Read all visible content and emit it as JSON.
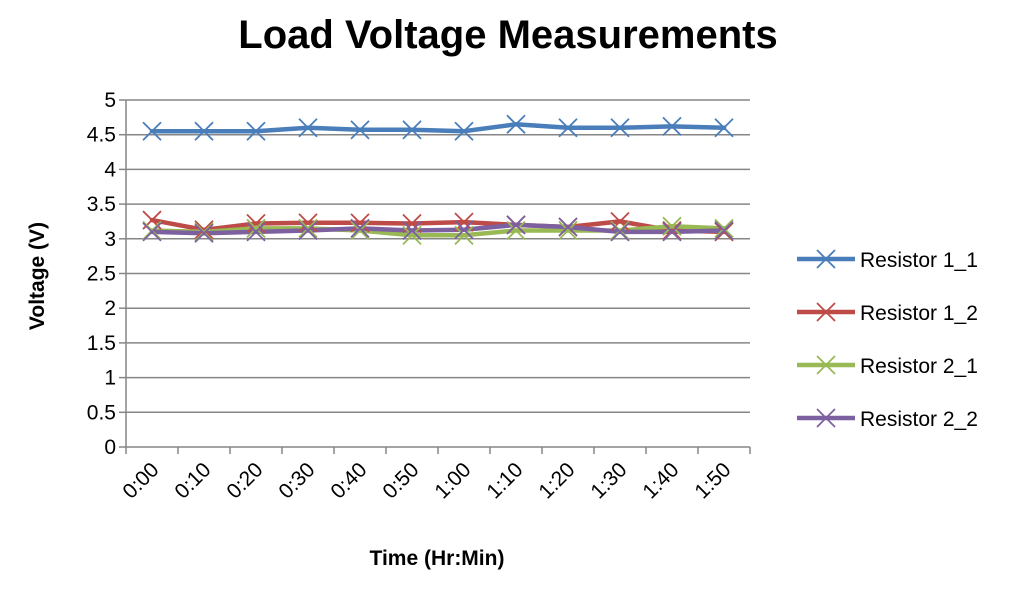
{
  "chart_data": {
    "type": "line",
    "title": "Load Voltage Measurements",
    "xlabel": "Time (Hr:Min)",
    "ylabel": "Voltage (V)",
    "categories": [
      "0:00",
      "0:10",
      "0:20",
      "0:30",
      "0:40",
      "0:50",
      "1:00",
      "1:10",
      "1:20",
      "1:30",
      "1:40",
      "1:50"
    ],
    "y_ticks": [
      "0",
      "0.5",
      "1",
      "1.5",
      "2",
      "2.5",
      "3",
      "3.5",
      "4",
      "4.5",
      "5"
    ],
    "ylim": [
      0,
      5
    ],
    "grid": "horizontal",
    "legend_position": "right",
    "series": [
      {
        "name": "Resistor 1_1",
        "color": "#4a7ebb",
        "values": [
          4.55,
          4.55,
          4.55,
          4.6,
          4.57,
          4.57,
          4.55,
          4.65,
          4.6,
          4.6,
          4.62,
          4.6
        ]
      },
      {
        "name": "Resistor 1_2",
        "color": "#be4b48",
        "values": [
          3.27,
          3.13,
          3.22,
          3.23,
          3.23,
          3.22,
          3.24,
          3.2,
          3.17,
          3.25,
          3.12,
          3.1
        ]
      },
      {
        "name": "Resistor 2_1",
        "color": "#98b954",
        "values": [
          3.12,
          3.1,
          3.15,
          3.15,
          3.12,
          3.05,
          3.05,
          3.12,
          3.12,
          3.12,
          3.18,
          3.15
        ]
      },
      {
        "name": "Resistor 2_2",
        "color": "#7d60a0",
        "values": [
          3.1,
          3.08,
          3.1,
          3.12,
          3.15,
          3.12,
          3.13,
          3.2,
          3.17,
          3.1,
          3.1,
          3.12
        ]
      }
    ]
  }
}
